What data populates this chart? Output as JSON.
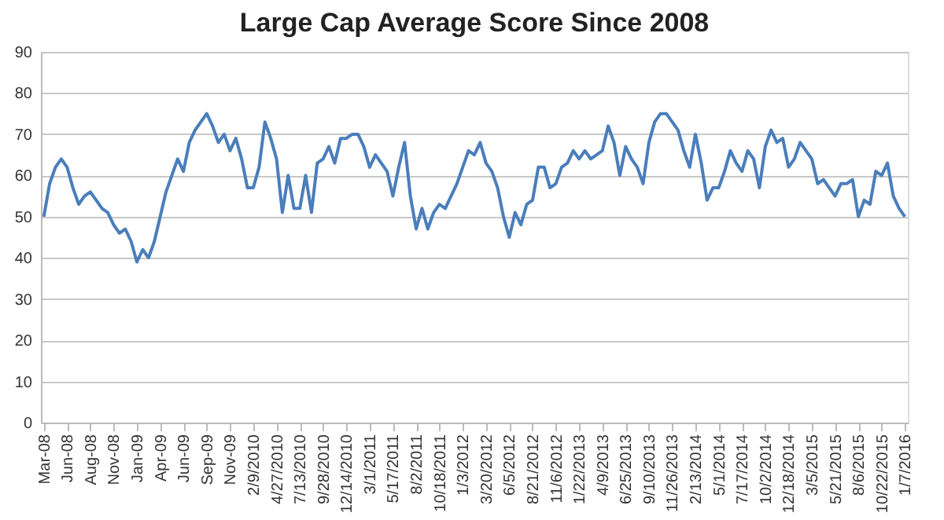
{
  "chart_data": {
    "type": "line",
    "title": "Large Cap Average Score Since 2008",
    "categories": [
      "Mar-08",
      null,
      null,
      null,
      "Jun-08",
      null,
      null,
      null,
      "Aug-08",
      null,
      null,
      null,
      "Nov-08",
      null,
      null,
      null,
      "Jan-09",
      null,
      null,
      null,
      "Apr-09",
      null,
      null,
      null,
      "Jun-09",
      null,
      null,
      null,
      "Sep-09",
      null,
      null,
      null,
      "Nov-09",
      null,
      null,
      null,
      "2/9/2010",
      null,
      null,
      null,
      "4/27/2010",
      null,
      null,
      null,
      "7/13/2010",
      null,
      null,
      null,
      "9/28/2010",
      null,
      null,
      null,
      "12/14/2010",
      null,
      null,
      null,
      "3/1/2011",
      null,
      null,
      null,
      "5/17/2011",
      null,
      null,
      null,
      "8/2/2011",
      null,
      null,
      null,
      "10/18/2011",
      null,
      null,
      null,
      "1/3/2012",
      null,
      null,
      null,
      "3/20/2012",
      null,
      null,
      null,
      "6/5/2012",
      null,
      null,
      null,
      "8/21/2012",
      null,
      null,
      null,
      "11/6/2012",
      null,
      null,
      null,
      "1/22/2013",
      null,
      null,
      null,
      "4/9/2013",
      null,
      null,
      null,
      "6/25/2013",
      null,
      null,
      null,
      "9/10/2013",
      null,
      null,
      null,
      "11/26/2013",
      null,
      null,
      null,
      "2/13/2014",
      null,
      null,
      null,
      "5/1/2014",
      null,
      null,
      null,
      "7/17/2014",
      null,
      null,
      null,
      "10/2/2014",
      null,
      null,
      null,
      "12/18/2014",
      null,
      null,
      null,
      "3/5/2015",
      null,
      null,
      null,
      "5/21/2015",
      null,
      null,
      null,
      "8/6/2015",
      null,
      null,
      null,
      "10/22/2015",
      null,
      null,
      null,
      "1/7/2016"
    ],
    "series": [
      {
        "color": "#4a7ebb",
        "values": [
          50,
          58,
          62,
          64,
          62,
          57,
          53,
          55,
          56,
          54,
          52,
          51,
          48,
          46,
          47,
          44,
          39,
          42,
          40,
          44,
          50,
          56,
          60,
          64,
          61,
          68,
          71,
          73,
          75,
          72,
          68,
          70,
          66,
          69,
          64,
          57,
          57,
          62,
          73,
          69,
          64,
          51,
          60,
          52,
          52,
          60,
          51,
          63,
          64,
          67,
          63,
          69,
          69,
          70,
          70,
          67,
          62,
          65,
          63,
          61,
          55,
          62,
          68,
          55,
          47,
          52,
          47,
          51,
          53,
          52,
          55,
          58,
          62,
          66,
          65,
          68,
          63,
          61,
          57,
          50,
          45,
          51,
          48,
          53,
          54,
          62,
          62,
          57,
          58,
          62,
          63,
          66,
          64,
          66,
          64,
          65,
          66,
          72,
          68,
          60,
          67,
          64,
          62,
          58,
          68,
          73,
          75,
          75,
          73,
          71,
          66,
          62,
          70,
          63,
          54,
          57,
          57,
          61,
          66,
          63,
          61,
          66,
          64,
          57,
          67,
          71,
          68,
          69,
          62,
          64,
          68,
          66,
          64,
          58,
          59,
          57,
          55,
          58,
          58,
          59,
          50,
          54,
          53,
          61,
          60,
          63,
          55,
          52,
          50
        ]
      }
    ],
    "ylim": [
      0,
      90
    ],
    "yticks": [
      0,
      10,
      20,
      30,
      40,
      50,
      60,
      70,
      80,
      90
    ],
    "grid": "y"
  }
}
